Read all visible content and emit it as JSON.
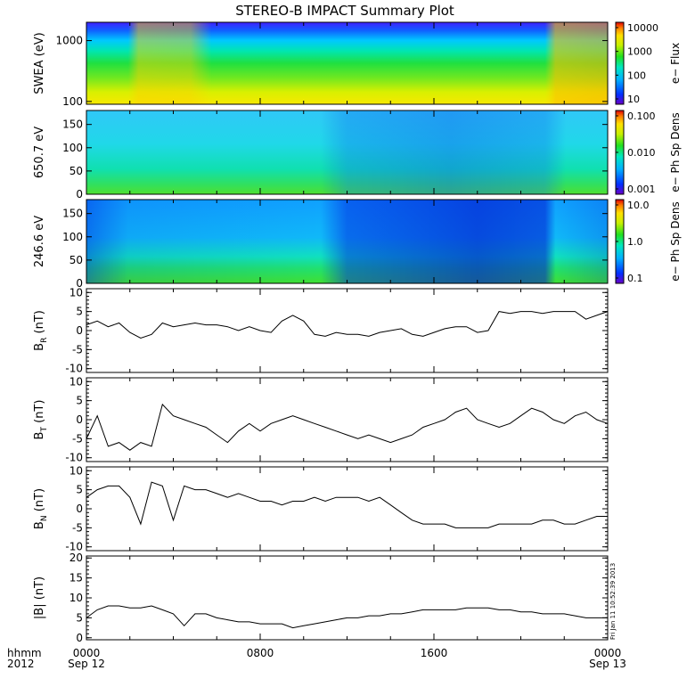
{
  "title": "STEREO-B IMPACT Summary Plot",
  "stamp": "Fri Jan 11 10:52:39 2013",
  "time_axis": {
    "row1_labels": [
      "0000",
      "0800",
      "1600",
      "0000"
    ],
    "row2_labels": [
      "Sep 12",
      "",
      "",
      "Sep 13"
    ],
    "left_label_1": "hhmm",
    "left_label_2": "2012"
  },
  "colors": {
    "line": "#000000",
    "colorbar": [
      "#6a00c8",
      "#0030ff",
      "#00b0ff",
      "#00e8c0",
      "#20e020",
      "#c8f000",
      "#ffe000",
      "#ff8000",
      "#e00000"
    ]
  },
  "chart_data": [
    {
      "type": "heatmap",
      "ylabel": "SWEA (eV)",
      "yscale": "log",
      "ylim": [
        90,
        2000
      ],
      "yticks": [
        "1000",
        "100"
      ],
      "colorbar": {
        "label": "e− Flux",
        "ticks": [
          "10000",
          "1000",
          "100",
          "10"
        ],
        "scale": "log"
      }
    },
    {
      "type": "heatmap",
      "ylabel": "650.7 eV",
      "ylim": [
        0,
        180
      ],
      "yticks": [
        "150",
        "100",
        "50",
        "0"
      ],
      "colorbar": {
        "label": "e− Ph Sp Dens",
        "ticks": [
          "0.100",
          "0.010",
          "0.001"
        ],
        "scale": "log"
      }
    },
    {
      "type": "heatmap",
      "ylabel": "246.6 eV",
      "ylim": [
        0,
        180
      ],
      "yticks": [
        "150",
        "100",
        "50",
        "0"
      ],
      "colorbar": {
        "label": "e− Ph Sp Dens",
        "ticks": [
          "10.0",
          "1.0",
          "0.1"
        ],
        "scale": "log"
      }
    },
    {
      "type": "line",
      "ylabel": "B",
      "ylabel_sub": "R",
      "ylabel_unit": "(nT)",
      "ylim": [
        -11,
        11
      ],
      "yticks": [
        "10",
        "5",
        "0",
        "-5",
        "-10"
      ],
      "x": [
        0,
        0.5,
        1,
        1.5,
        2,
        2.5,
        3,
        3.5,
        4,
        4.5,
        5,
        5.5,
        6,
        6.5,
        7,
        7.5,
        8,
        8.5,
        9,
        9.5,
        10,
        10.5,
        11,
        11.5,
        12,
        12.5,
        13,
        13.5,
        14,
        14.5,
        15,
        15.5,
        16,
        16.5,
        17,
        17.5,
        18,
        18.5,
        19,
        19.5,
        20,
        20.5,
        21,
        21.5,
        22,
        22.5,
        23,
        23.5,
        24
      ],
      "y": [
        1.5,
        2.5,
        1,
        2,
        -0.5,
        -2,
        -1,
        2,
        1,
        1.5,
        2,
        1.5,
        1.5,
        1,
        0,
        1,
        0,
        -0.5,
        2.5,
        4,
        2.5,
        -1,
        -1.5,
        -0.5,
        -1,
        -1,
        -1.5,
        -0.5,
        0,
        0.5,
        -1,
        -1.5,
        -0.5,
        0.5,
        1,
        1,
        -0.5,
        0,
        5,
        4.5,
        5,
        5,
        4.5,
        5,
        5,
        5,
        3,
        4,
        5
      ]
    },
    {
      "type": "line",
      "ylabel": "B",
      "ylabel_sub": "T",
      "ylabel_unit": "(nT)",
      "ylim": [
        -11,
        11
      ],
      "yticks": [
        "10",
        "5",
        "0",
        "-5",
        "-10"
      ],
      "x": [
        0,
        0.5,
        1,
        1.5,
        2,
        2.5,
        3,
        3.5,
        4,
        4.5,
        5,
        5.5,
        6,
        6.5,
        7,
        7.5,
        8,
        8.5,
        9,
        9.5,
        10,
        10.5,
        11,
        11.5,
        12,
        12.5,
        13,
        13.5,
        14,
        14.5,
        15,
        15.5,
        16,
        16.5,
        17,
        17.5,
        18,
        18.5,
        19,
        19.5,
        20,
        20.5,
        21,
        21.5,
        22,
        22.5,
        23,
        23.5,
        24
      ],
      "y": [
        -5,
        1,
        -7,
        -6,
        -8,
        -6,
        -7,
        4,
        1,
        0,
        -1,
        -2,
        -4,
        -6,
        -3,
        -1,
        -3,
        -1,
        0,
        1,
        0,
        -1,
        -2,
        -3,
        -4,
        -5,
        -4,
        -5,
        -6,
        -5,
        -4,
        -2,
        -1,
        0,
        2,
        3,
        0,
        -1,
        -2,
        -1,
        1,
        3,
        2,
        0,
        -1,
        1,
        2,
        0,
        -1
      ]
    },
    {
      "type": "line",
      "ylabel": "B",
      "ylabel_sub": "N",
      "ylabel_unit": "(nT)",
      "ylim": [
        -11,
        11
      ],
      "yticks": [
        "10",
        "5",
        "0",
        "-5",
        "-10"
      ],
      "x": [
        0,
        0.5,
        1,
        1.5,
        2,
        2.5,
        3,
        3.5,
        4,
        4.5,
        5,
        5.5,
        6,
        6.5,
        7,
        7.5,
        8,
        8.5,
        9,
        9.5,
        10,
        10.5,
        11,
        11.5,
        12,
        12.5,
        13,
        13.5,
        14,
        14.5,
        15,
        15.5,
        16,
        16.5,
        17,
        17.5,
        18,
        18.5,
        19,
        19.5,
        20,
        20.5,
        21,
        21.5,
        22,
        22.5,
        23,
        23.5,
        24
      ],
      "y": [
        3,
        5,
        6,
        6,
        3,
        -4,
        7,
        6,
        -3,
        6,
        5,
        5,
        4,
        3,
        4,
        3,
        2,
        2,
        1,
        2,
        2,
        3,
        2,
        3,
        3,
        3,
        2,
        3,
        1,
        -1,
        -3,
        -4,
        -4,
        -4,
        -5,
        -5,
        -5,
        -5,
        -4,
        -4,
        -4,
        -4,
        -3,
        -3,
        -4,
        -4,
        -3,
        -2,
        -2
      ]
    },
    {
      "type": "line",
      "ylabel": "|B|",
      "ylabel_unit": "(nT)",
      "ylim": [
        -0.5,
        20.5
      ],
      "yticks": [
        "20",
        "15",
        "10",
        "5",
        "0"
      ],
      "x": [
        0,
        0.5,
        1,
        1.5,
        2,
        2.5,
        3,
        3.5,
        4,
        4.5,
        5,
        5.5,
        6,
        6.5,
        7,
        7.5,
        8,
        8.5,
        9,
        9.5,
        10,
        10.5,
        11,
        11.5,
        12,
        12.5,
        13,
        13.5,
        14,
        14.5,
        15,
        15.5,
        16,
        16.5,
        17,
        17.5,
        18,
        18.5,
        19,
        19.5,
        20,
        20.5,
        21,
        21.5,
        22,
        22.5,
        23,
        23.5,
        24
      ],
      "y": [
        5,
        7,
        8,
        8,
        7.5,
        7.5,
        8,
        7,
        6,
        3,
        6,
        6,
        5,
        4.5,
        4,
        4,
        3.5,
        3.5,
        3.5,
        2.5,
        3,
        3.5,
        4,
        4.5,
        5,
        5,
        5.5,
        5.5,
        6,
        6,
        6.5,
        7,
        7,
        7,
        7,
        7.5,
        7.5,
        7.5,
        7,
        7,
        6.5,
        6.5,
        6,
        6,
        6,
        5.5,
        5,
        5,
        5
      ]
    }
  ]
}
